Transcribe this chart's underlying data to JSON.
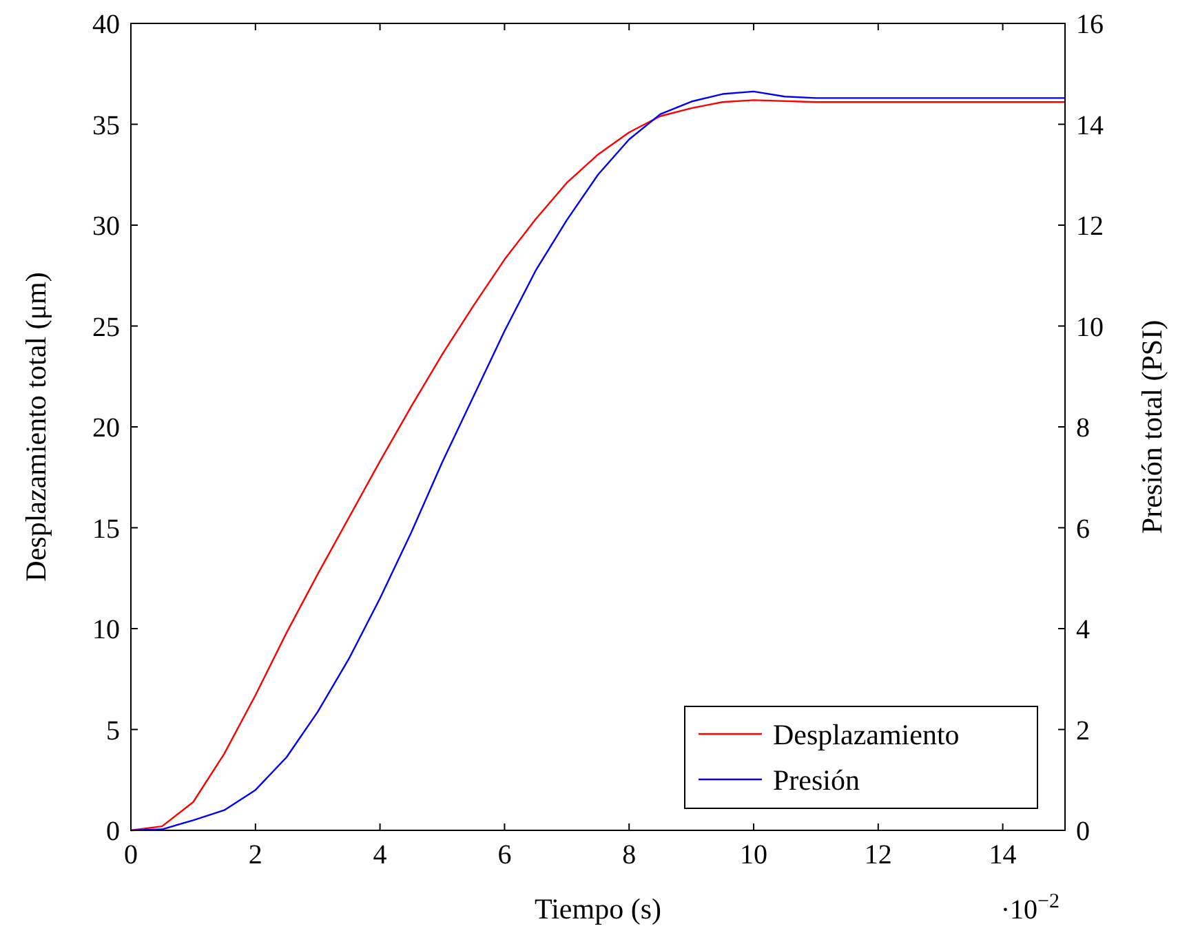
{
  "chart_data": {
    "type": "line",
    "xlabel": "Tiempo (s)",
    "ylabel": "Desplazamiento total (μm)",
    "y2label": "Presión total (PSI)",
    "xlim": [
      0,
      15
    ],
    "xticks": [
      0,
      2,
      4,
      6,
      8,
      10,
      12,
      14
    ],
    "ylim": [
      0,
      40
    ],
    "yticks": [
      0,
      5,
      10,
      15,
      20,
      25,
      30,
      35,
      40
    ],
    "y2lim": [
      0,
      16
    ],
    "y2ticks": [
      0,
      2,
      4,
      6,
      8,
      10,
      12,
      14,
      16
    ],
    "annotations": [
      "·10$^{−2}$"
    ],
    "legend": "bottom right",
    "grid": false,
    "marker": "none",
    "line_style": "solid",
    "series": [
      {
        "name": "Desplazamiento",
        "color": "#ff0000",
        "x": [
          0,
          0.5,
          1,
          1.5,
          2,
          2.5,
          3,
          3.5,
          4,
          4.5,
          5,
          5.5,
          6,
          6.5,
          7,
          7.5,
          8,
          8.5,
          9,
          9.5,
          10,
          11,
          12,
          15
        ],
        "values": [
          0,
          0.2,
          1.4,
          3.8,
          6.7,
          9.8,
          12.7,
          15.5,
          18.3,
          21,
          23.6,
          26,
          28.3,
          30.3,
          32.1,
          33.5,
          34.6,
          35.4,
          35.8,
          36.1,
          36.2,
          36.1,
          36.1,
          36.1
        ]
      },
      {
        "name": "Presión",
        "color": "#0000ff",
        "axis": "y2",
        "x": [
          0,
          0.5,
          1,
          1.5,
          2,
          2.5,
          3,
          3.5,
          4,
          4.5,
          5,
          5.5,
          6,
          6.5,
          7,
          7.5,
          8,
          8.5,
          9,
          9.5,
          10,
          10.5,
          11,
          15
        ],
        "values": [
          0,
          0.02,
          0.2,
          0.4,
          0.8,
          1.45,
          2.35,
          3.4,
          4.6,
          5.9,
          7.3,
          8.6,
          9.9,
          11.1,
          12.1,
          13,
          13.7,
          14.2,
          14.45,
          14.6,
          14.65,
          14.55,
          14.52,
          14.52
        ]
      }
    ]
  }
}
